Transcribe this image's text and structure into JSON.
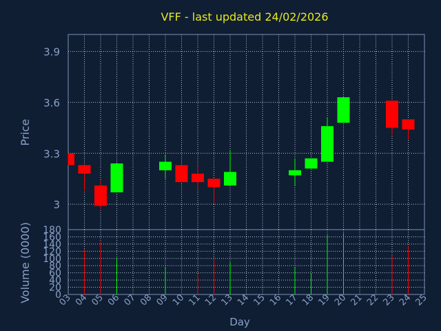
{
  "chart_data": {
    "type": "candlestick",
    "title": "VFF - last updated 24/02/2026",
    "xlabel": "Day",
    "price_panel": {
      "ylabel": "Price",
      "ylim": [
        2.85,
        4.0
      ],
      "yticks": [
        "3.9",
        "3.6",
        "3.3",
        "3"
      ],
      "ytick_values": [
        3.9,
        3.6,
        3.3,
        3.0
      ]
    },
    "volume_panel": {
      "ylabel": "Volume (0000)",
      "ylim": [
        0,
        180
      ],
      "yticks": [
        "180",
        "160",
        "140",
        "120",
        "100",
        "80",
        "60",
        "40",
        "20",
        "0"
      ],
      "ytick_values": [
        180,
        160,
        140,
        120,
        100,
        80,
        60,
        40,
        20,
        0
      ]
    },
    "x_ticks": [
      "03",
      "04",
      "05",
      "06",
      "07",
      "08",
      "09",
      "10",
      "11",
      "12",
      "13",
      "14",
      "15",
      "16",
      "17",
      "18",
      "19",
      "20",
      "21",
      "22",
      "23",
      "24",
      "25"
    ],
    "candles": [
      {
        "day": "03",
        "open": 3.3,
        "close": 3.23,
        "high": 3.3,
        "low": 3.23,
        "volume": 0
      },
      {
        "day": "04",
        "open": 3.23,
        "close": 3.18,
        "high": 3.23,
        "low": 3.08,
        "volume": 125
      },
      {
        "day": "05",
        "open": 3.11,
        "close": 2.99,
        "high": 3.14,
        "low": 2.97,
        "volume": 145
      },
      {
        "day": "06",
        "open": 3.07,
        "close": 3.24,
        "high": 3.24,
        "low": 3.07,
        "volume": 100
      },
      {
        "day": "09",
        "open": 3.2,
        "close": 3.25,
        "high": 3.29,
        "low": 3.15,
        "volume": 75
      },
      {
        "day": "10",
        "open": 3.23,
        "close": 3.13,
        "high": 3.23,
        "low": 3.13,
        "volume": 95
      },
      {
        "day": "11",
        "open": 3.18,
        "close": 3.13,
        "high": 3.23,
        "low": 3.09,
        "volume": 57
      },
      {
        "day": "12",
        "open": 3.15,
        "close": 3.1,
        "high": 3.15,
        "low": 3.0,
        "volume": 100
      },
      {
        "day": "13",
        "open": 3.11,
        "close": 3.19,
        "high": 3.32,
        "low": 3.11,
        "volume": 90
      },
      {
        "day": "17",
        "open": 3.17,
        "close": 3.2,
        "high": 3.27,
        "low": 3.11,
        "volume": 75
      },
      {
        "day": "18",
        "open": 3.21,
        "close": 3.27,
        "high": 3.27,
        "low": 3.21,
        "volume": 60
      },
      {
        "day": "19",
        "open": 3.25,
        "close": 3.46,
        "high": 3.51,
        "low": 3.25,
        "volume": 165
      },
      {
        "day": "20",
        "open": 3.48,
        "close": 3.63,
        "high": 3.63,
        "low": 3.48,
        "volume": 170
      },
      {
        "day": "23",
        "open": 3.61,
        "close": 3.45,
        "high": 3.61,
        "low": 3.41,
        "volume": 110
      },
      {
        "day": "24",
        "open": 3.5,
        "close": 3.44,
        "high": 3.5,
        "low": 3.38,
        "volume": 135
      }
    ],
    "colors": {
      "background": "#0f1e33",
      "frame": "#7c91b4",
      "title": "#e8e820",
      "axis_text": "#8aa0c8",
      "up": "#00ff00",
      "down": "#ff0000",
      "grid": "#b8c4d8"
    }
  }
}
